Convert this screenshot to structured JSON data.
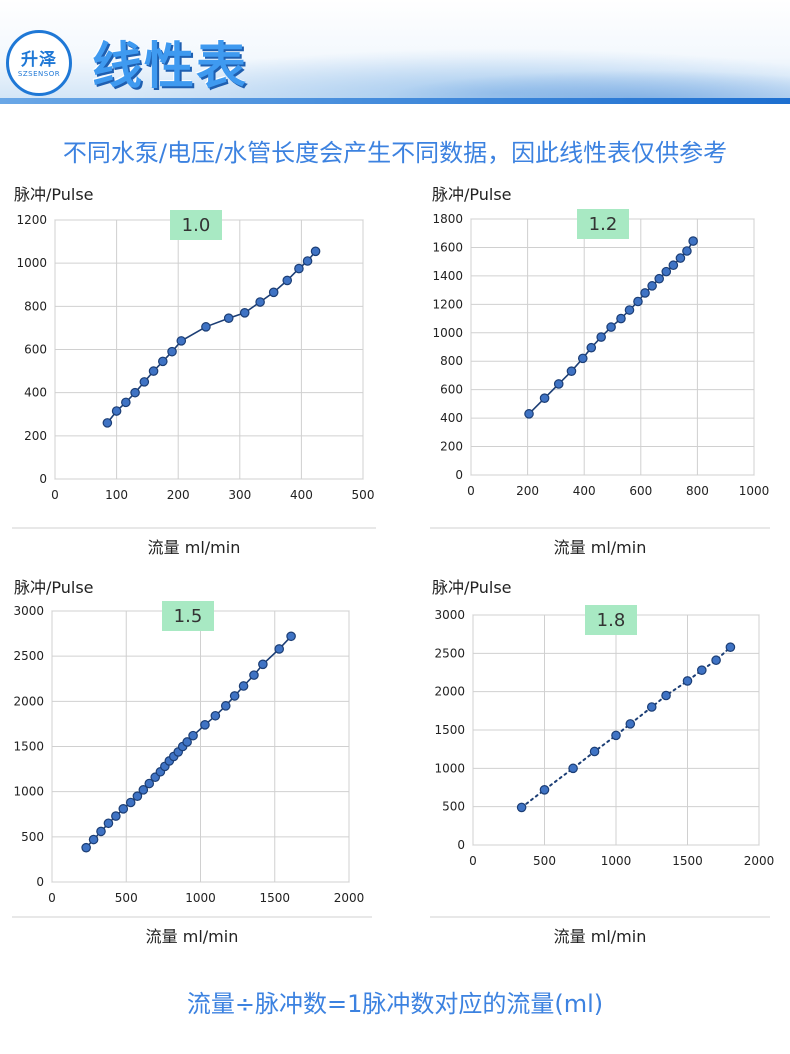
{
  "header": {
    "logo_text": "升泽",
    "logo_subtext": "SZSENSOR",
    "title": "线性表"
  },
  "subtitle": "不同水泵/电压/水管长度会产生不同数据，因此线性表仅供参考",
  "footer": "流量÷脉冲数=1脉冲数对应的流量(ml)",
  "colors": {
    "marker_fill": "#3f73c4",
    "marker_stroke": "#1c3e75",
    "line": "#1c3e75",
    "grid": "#d0d0d0",
    "badge_bg": "#a8e9c3",
    "accent_text": "#3c82e0"
  },
  "chart_data": [
    {
      "type": "line",
      "badge": "1.0",
      "ylabel": "脉冲/Pulse",
      "xlabel": "流量 ml/min",
      "xlim": [
        0,
        500
      ],
      "ylim": [
        0,
        1200
      ],
      "xticks": [
        0,
        100,
        200,
        300,
        400,
        500
      ],
      "yticks": [
        0,
        200,
        400,
        600,
        800,
        1000,
        1200
      ],
      "line_style": "solid",
      "grid": true,
      "series": [
        {
          "x": [
            85,
            100,
            115,
            130,
            145,
            160,
            175,
            190,
            205,
            245,
            282,
            308,
            333,
            355,
            377,
            396,
            410,
            423
          ],
          "y": [
            260,
            315,
            355,
            400,
            450,
            500,
            545,
            590,
            640,
            705,
            745,
            770,
            820,
            865,
            920,
            975,
            1010,
            1055
          ]
        }
      ]
    },
    {
      "type": "line",
      "badge": "1.2",
      "ylabel": "脉冲/Pulse",
      "xlabel": "流量 ml/min",
      "xlim": [
        0,
        1000
      ],
      "ylim": [
        0,
        1800
      ],
      "xticks": [
        0,
        200,
        400,
        600,
        800,
        1000
      ],
      "yticks": [
        0,
        200,
        400,
        600,
        800,
        1000,
        1200,
        1400,
        1600,
        1800
      ],
      "line_style": "solid",
      "grid": true,
      "series": [
        {
          "x": [
            205,
            260,
            310,
            355,
            395,
            425,
            460,
            495,
            530,
            560,
            590,
            615,
            640,
            665,
            690,
            715,
            740,
            763,
            785
          ],
          "y": [
            430,
            540,
            640,
            730,
            820,
            895,
            970,
            1040,
            1100,
            1160,
            1220,
            1280,
            1330,
            1380,
            1430,
            1475,
            1525,
            1575,
            1645
          ]
        }
      ]
    },
    {
      "type": "line",
      "badge": "1.5",
      "ylabel": "脉冲/Pulse",
      "xlabel": "流量 ml/min",
      "xlim": [
        0,
        2000
      ],
      "ylim": [
        0,
        3000
      ],
      "xticks": [
        0,
        500,
        1000,
        1500,
        2000
      ],
      "yticks": [
        0,
        500,
        1000,
        1500,
        2000,
        2500,
        3000
      ],
      "line_style": "solid",
      "grid": true,
      "series": [
        {
          "x": [
            230,
            280,
            330,
            380,
            430,
            480,
            530,
            575,
            615,
            655,
            695,
            730,
            760,
            790,
            820,
            850,
            880,
            910,
            950,
            1030,
            1100,
            1170,
            1230,
            1290,
            1360,
            1420,
            1530,
            1610
          ],
          "y": [
            380,
            470,
            560,
            650,
            730,
            810,
            880,
            950,
            1020,
            1090,
            1160,
            1220,
            1280,
            1340,
            1390,
            1440,
            1500,
            1550,
            1620,
            1740,
            1840,
            1950,
            2060,
            2170,
            2290,
            2410,
            2580,
            2720
          ]
        }
      ]
    },
    {
      "type": "line",
      "badge": "1.8",
      "ylabel": "脉冲/Pulse",
      "xlabel": "流量 ml/min",
      "xlim": [
        0,
        2000
      ],
      "ylim": [
        0,
        3000
      ],
      "xticks": [
        0,
        500,
        1000,
        1500,
        2000
      ],
      "yticks": [
        0,
        500,
        1000,
        1500,
        2000,
        2500,
        3000
      ],
      "line_style": "dotted",
      "grid": true,
      "series": [
        {
          "x": [
            340,
            500,
            700,
            850,
            1000,
            1100,
            1250,
            1350,
            1500,
            1600,
            1700,
            1800
          ],
          "y": [
            490,
            720,
            1000,
            1220,
            1430,
            1580,
            1800,
            1950,
            2140,
            2280,
            2410,
            2580
          ]
        }
      ]
    }
  ]
}
